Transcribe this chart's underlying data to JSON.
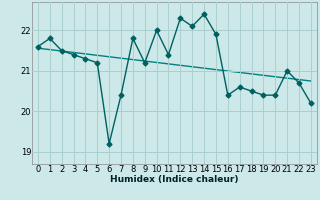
{
  "x": [
    0,
    1,
    2,
    3,
    4,
    5,
    6,
    7,
    8,
    9,
    10,
    11,
    12,
    13,
    14,
    15,
    16,
    17,
    18,
    19,
    20,
    21,
    22,
    23
  ],
  "y": [
    21.6,
    21.8,
    21.5,
    21.4,
    21.3,
    21.2,
    19.2,
    20.4,
    21.8,
    21.2,
    22.0,
    21.4,
    22.3,
    22.1,
    22.4,
    21.9,
    20.4,
    20.6,
    20.5,
    20.4,
    20.4,
    21.0,
    20.7,
    20.2
  ],
  "line_color": "#006060",
  "trend_color": "#008080",
  "background_color": "#cce8e8",
  "grid_color": "#aacece",
  "xlabel": "Humidex (Indice chaleur)",
  "ylim": [
    18.7,
    22.7
  ],
  "xlim": [
    -0.5,
    23.5
  ],
  "yticks": [
    19,
    20,
    21,
    22
  ],
  "xticks": [
    0,
    1,
    2,
    3,
    4,
    5,
    6,
    7,
    8,
    9,
    10,
    11,
    12,
    13,
    14,
    15,
    16,
    17,
    18,
    19,
    20,
    21,
    22,
    23
  ],
  "marker": "D",
  "marker_size": 2.5,
  "linewidth": 1.0,
  "xlabel_fontsize": 6.5,
  "tick_fontsize": 6.0
}
